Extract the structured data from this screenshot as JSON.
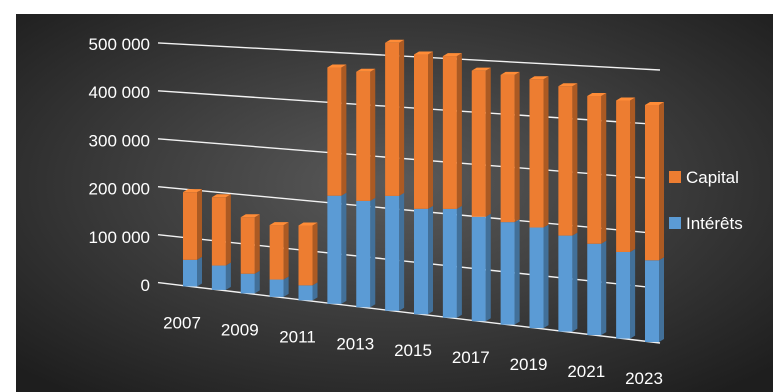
{
  "chart_data": {
    "type": "bar",
    "stacked": true,
    "three_d": true,
    "title": "",
    "xlabel": "",
    "ylabel": "",
    "ylim": [
      0,
      500000
    ],
    "yticks": [
      "500 000",
      "400 000",
      "300 000",
      "200 000",
      "100 000",
      "0"
    ],
    "ytick_values": [
      500000,
      400000,
      300000,
      200000,
      100000,
      0
    ],
    "categories": [
      "2007",
      "2008",
      "2009",
      "2010",
      "2011",
      "2012",
      "2013",
      "2014",
      "2015",
      "2016",
      "2017",
      "2018",
      "2019",
      "2020",
      "2021",
      "2022",
      "2023"
    ],
    "xtick_labels": [
      "2007",
      "2009",
      "2011",
      "2013",
      "2015",
      "2017",
      "2019",
      "2021",
      "2023"
    ],
    "series": [
      {
        "name": "Intérêts",
        "color": "#5b9bd5",
        "values": [
          55000,
          50000,
          40000,
          35000,
          30000,
          215000,
          210000,
          225000,
          205000,
          210000,
          200000,
          195000,
          190000,
          180000,
          170000,
          160000,
          150000
        ]
      },
      {
        "name": "Capital",
        "color": "#ed7d31",
        "values": [
          140000,
          140000,
          115000,
          110000,
          120000,
          255000,
          255000,
          300000,
          300000,
          295000,
          280000,
          280000,
          280000,
          280000,
          275000,
          280000,
          285000
        ]
      }
    ],
    "legend_position": "right",
    "grid": true,
    "background": "#262626"
  }
}
